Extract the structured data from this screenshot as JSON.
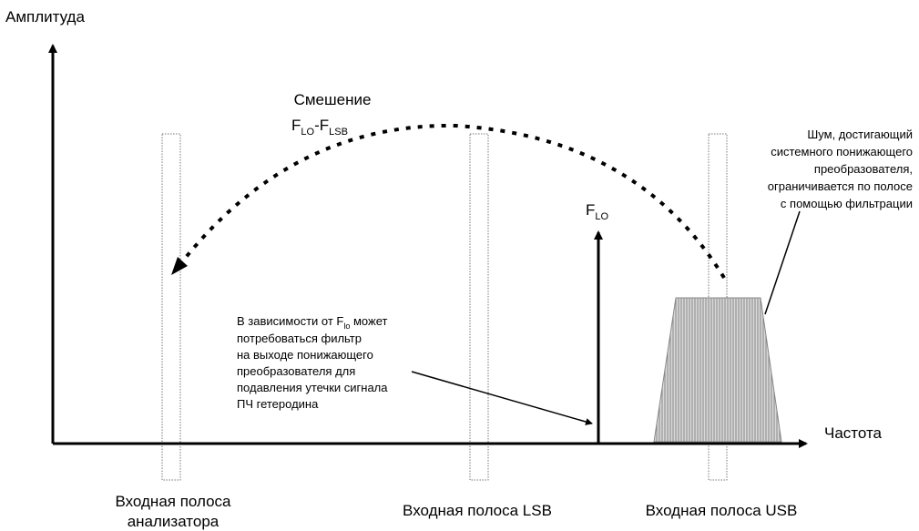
{
  "axes": {
    "y_label": "Амплитуда",
    "x_label": "Частота"
  },
  "mixing": {
    "title": "Смешение",
    "formula": [
      {
        "base": "F",
        "sub": "LO"
      },
      {
        "base": "-F",
        "sub": "LSB"
      }
    ]
  },
  "lo_label": {
    "base": "F",
    "sub": "LO"
  },
  "filter_note": {
    "first": {
      "before": "В зависимости от F",
      "sub": "lo",
      "after": " может"
    },
    "lines": [
      "потребоваться фильтр",
      "на выходе понижающего",
      "преобразователя для",
      "подавления утечки сигнала",
      "ПЧ гетеродина"
    ]
  },
  "noise_note": [
    "Шум, достигающий",
    "системного понижающего",
    "преобразователя,",
    "ограничивается по полосе",
    "с помощью фильтрации"
  ],
  "bands": {
    "analyzer": [
      "Входная полоса",
      "анализатора"
    ],
    "lsb": "Входная полоса LSB",
    "usb": "Входная полоса USB"
  }
}
